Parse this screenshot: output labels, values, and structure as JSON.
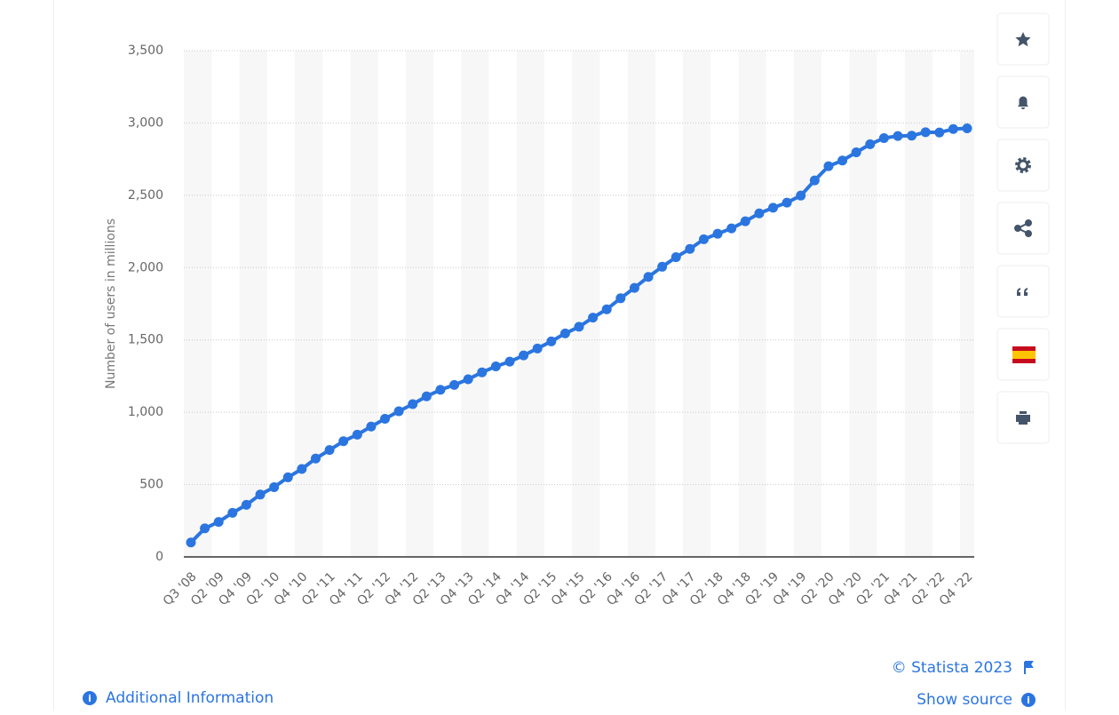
{
  "chart_data": {
    "type": "line",
    "y_axis_label": "Number of users in millions",
    "categories": [
      "Q3 '08",
      null,
      "Q2 '09",
      null,
      "Q4 '09",
      null,
      "Q2 '10",
      null,
      "Q4 '10",
      null,
      "Q2 '11",
      null,
      "Q4 '11",
      null,
      "Q2 '12",
      null,
      "Q4 '12",
      null,
      "Q2 '13",
      null,
      "Q4 '13",
      null,
      "Q2 '14",
      null,
      "Q4 '14",
      null,
      "Q2 '15",
      null,
      "Q4 '15",
      null,
      "Q2 '16",
      null,
      "Q4 '16",
      null,
      "Q2 '17",
      null,
      "Q4 '17",
      null,
      "Q2 '18",
      null,
      "Q4 '18",
      null,
      "Q2 '19",
      null,
      "Q4 '19",
      null,
      "Q2 '20",
      null,
      "Q4 '20",
      null,
      "Q2 '21",
      null,
      "Q4 '21",
      null,
      "Q2 '22",
      null,
      "Q4 '22"
    ],
    "values": [
      100,
      197,
      242,
      305,
      360,
      431,
      482,
      550,
      608,
      680,
      739,
      800,
      845,
      901,
      955,
      1007,
      1056,
      1110,
      1155,
      1189,
      1228,
      1276,
      1317,
      1350,
      1393,
      1441,
      1490,
      1545,
      1591,
      1654,
      1712,
      1788,
      1860,
      1936,
      2006,
      2072,
      2129,
      2196,
      2234,
      2271,
      2320,
      2375,
      2414,
      2449,
      2498,
      2603,
      2701,
      2740,
      2797,
      2853,
      2895,
      2910,
      2912,
      2936,
      2934,
      2958,
      2963
    ],
    "color": "#2b75e0",
    "ylim": [
      0,
      3500
    ],
    "yticks": [
      0,
      500,
      {
        "value": 1000,
        "label": "1,000"
      },
      {
        "value": 1500,
        "label": "1,500"
      },
      {
        "value": 2000,
        "label": "2,000"
      },
      {
        "value": 2500,
        "label": "2,500"
      },
      {
        "value": 3000,
        "label": "3,000"
      },
      {
        "value": 3500,
        "label": "3,500"
      }
    ],
    "grid": true
  },
  "footer": {
    "copyright": "© Statista 2023",
    "show_source": "Show source",
    "additional_information": "Additional Information"
  }
}
